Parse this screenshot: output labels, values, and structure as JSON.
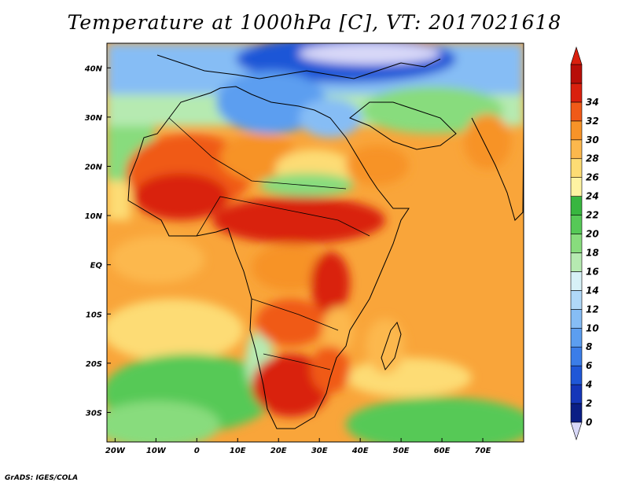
{
  "title": "Temperature at 1000hPa [C], VT: 2017021618",
  "credit": "GrADS: IGES/COLA",
  "map": {
    "region": "Africa, Mediterranean, Arabian Peninsula, India",
    "lon_range": [
      -22,
      80
    ],
    "lat_range": [
      -36,
      45
    ],
    "boundaries": "country borders and coastlines",
    "x_tick_labels": [
      "20W",
      "10W",
      "0",
      "10E",
      "20E",
      "30E",
      "40E",
      "50E",
      "60E",
      "70E"
    ],
    "y_tick_labels": [
      "40N",
      "30N",
      "20N",
      "10N",
      "EQ",
      "10S",
      "20S",
      "30S"
    ]
  },
  "colorbar": {
    "units": "C",
    "levels": [
      "0",
      "2",
      "4",
      "6",
      "8",
      "10",
      "12",
      "14",
      "16",
      "18",
      "20",
      "22",
      "24",
      "26",
      "28",
      "30",
      "32",
      "34"
    ],
    "colors": [
      "#0b1e85",
      "#1536b9",
      "#1f57d7",
      "#3b7de8",
      "#5c9ef0",
      "#86bdf5",
      "#b0d8f8",
      "#d7f1f7",
      "#b6eab1",
      "#88dc7d",
      "#56c957",
      "#38b640",
      "#fef3a2",
      "#fddc74",
      "#fcb84d",
      "#f79328",
      "#f05a18",
      "#d9200e",
      "#b80e08"
    ],
    "under_color": "#d8d8f8",
    "over_color": "#d9200e"
  }
}
